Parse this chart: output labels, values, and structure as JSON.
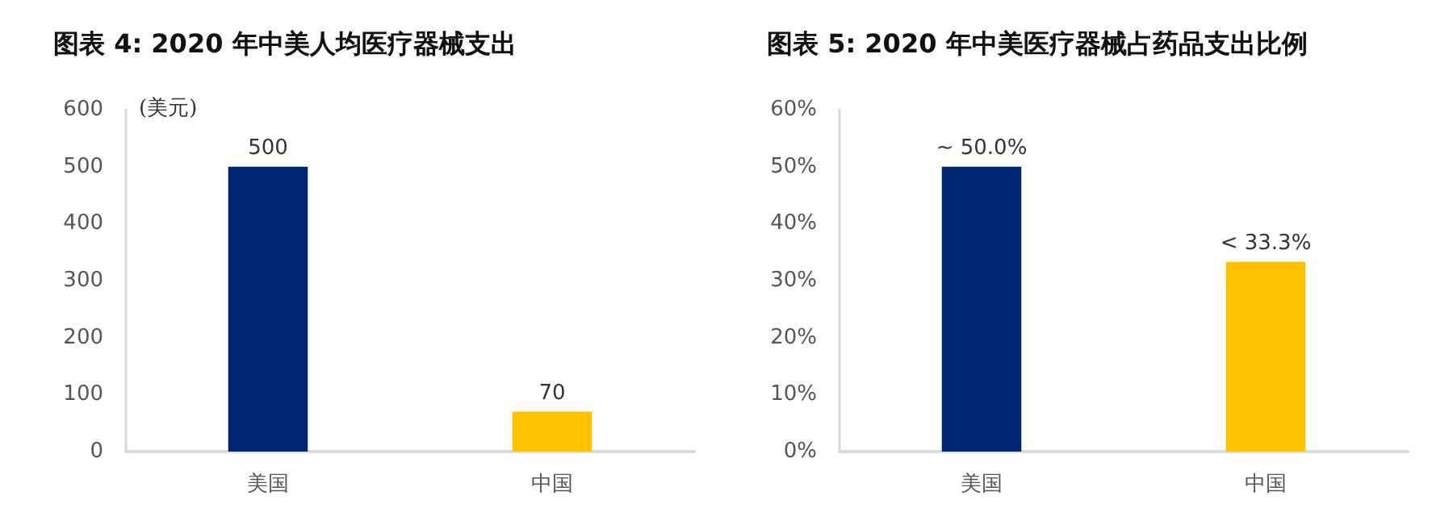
{
  "chart_data": [
    {
      "type": "bar",
      "title": "图表 4: 2020 年中美人均医疗器械支出",
      "ylabel": "(美元)",
      "categories": [
        "美国",
        "中国"
      ],
      "colors": [
        "#002673",
        "#ffc000"
      ],
      "values": [
        500,
        70
      ],
      "data_labels": true,
      "ylim": [
        0,
        600
      ],
      "yticks": [
        0,
        100,
        200,
        300,
        400,
        500,
        600
      ],
      "grid": false
    },
    {
      "type": "bar",
      "title": "图表 5: 2020 年中美医疗器械占药品支出比例",
      "categories": [
        "美国",
        "中国"
      ],
      "colors": [
        "#002673",
        "#ffc000"
      ],
      "values": [
        50,
        33.3
      ],
      "value_labels": [
        "~ 50.0%",
        "< 33.3%"
      ],
      "ylim": [
        0,
        60
      ],
      "yticks": [
        {
          "value": 0,
          "label": "0%"
        },
        {
          "value": 10,
          "label": "10%"
        },
        {
          "value": 20,
          "label": "20%"
        },
        {
          "value": 30,
          "label": "30%"
        },
        {
          "value": 40,
          "label": "40%"
        },
        {
          "value": 50,
          "label": "50%"
        },
        {
          "value": 60,
          "label": "60%"
        }
      ],
      "grid": false
    }
  ]
}
